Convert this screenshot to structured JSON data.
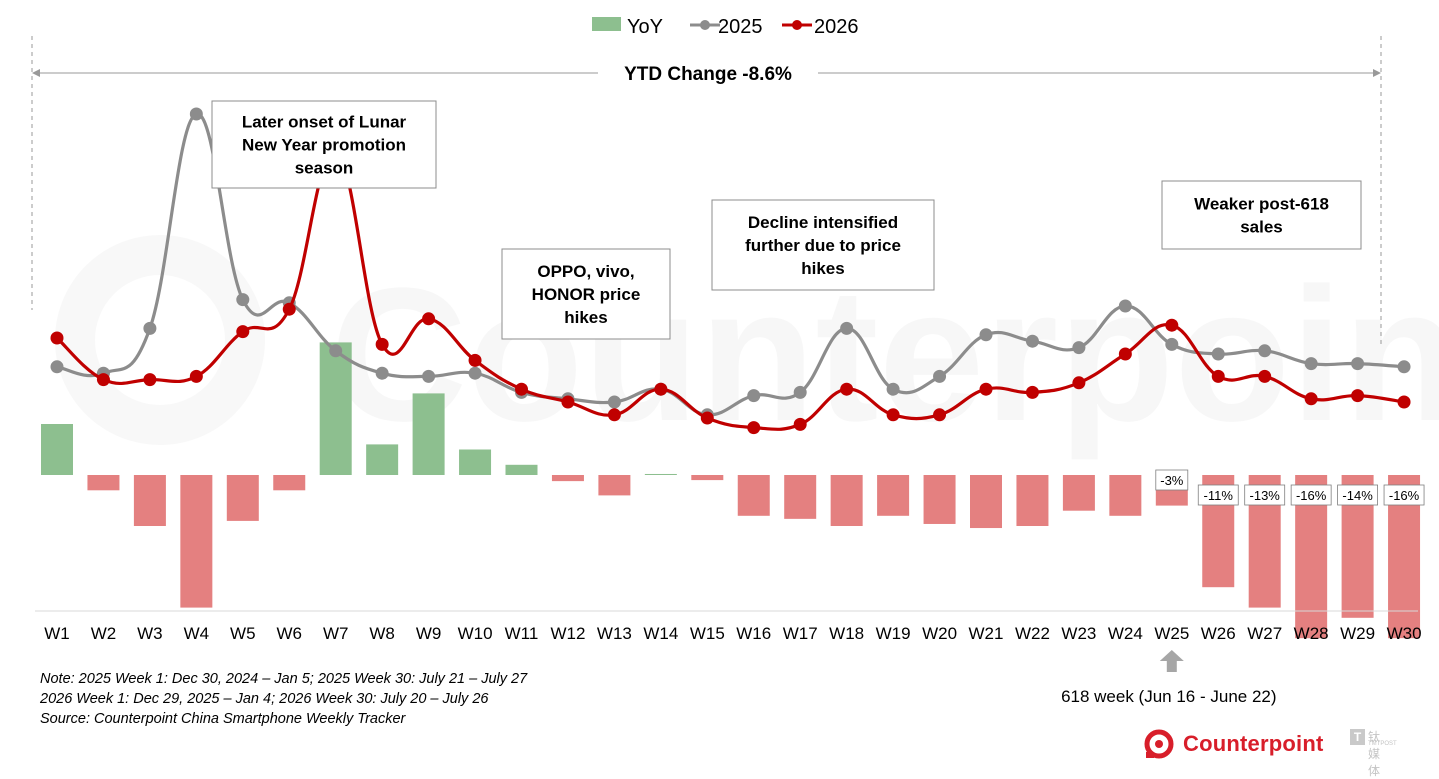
{
  "chart_data": {
    "type": "bar+line",
    "categories": [
      "W1",
      "W2",
      "W3",
      "W4",
      "W5",
      "W6",
      "W7",
      "W8",
      "W9",
      "W10",
      "W11",
      "W12",
      "W13",
      "W14",
      "W15",
      "W16",
      "W17",
      "W18",
      "W19",
      "W20",
      "W21",
      "W22",
      "W23",
      "W24",
      "W25",
      "W26",
      "W27",
      "W28",
      "W29",
      "W30"
    ],
    "lines": [
      {
        "name": "2025",
        "color": "#8c8c8c",
        "values": [
          131,
          129,
          143,
          210,
          152,
          151,
          136,
          129,
          128,
          129,
          123,
          121,
          120,
          124,
          116,
          122,
          123,
          143,
          124,
          128,
          141,
          139,
          137,
          150,
          138,
          135,
          136,
          132,
          132,
          131
        ]
      },
      {
        "name": "2026",
        "color": "#c00000",
        "values": [
          140,
          127,
          127,
          128,
          142,
          149,
          198,
          138,
          146,
          133,
          124,
          120,
          116,
          124,
          115,
          112,
          113,
          124,
          116,
          116,
          124,
          123,
          126,
          135,
          144,
          128,
          128,
          121,
          122,
          120
        ]
      }
    ],
    "bars": {
      "name": "YoY",
      "unit": "%",
      "positive_color": "#8dbf8f",
      "negative_color": "#e48080",
      "values": [
        5,
        -1.5,
        -5,
        -13,
        -4.5,
        -1.5,
        13,
        3,
        8,
        2.5,
        1,
        -0.6,
        -2,
        0.1,
        -0.5,
        -4,
        -4.3,
        -5,
        -4,
        -4.8,
        -5.2,
        -5,
        -3.5,
        -4,
        -3,
        -11,
        -13,
        -16,
        -14,
        -16
      ],
      "labels": [
        "",
        "",
        "",
        "",
        "",
        "",
        "",
        "",
        "",
        "",
        "",
        "",
        "",
        "",
        "",
        "",
        "",
        "",
        "",
        "",
        "",
        "",
        "",
        "",
        "-3%",
        "-11%",
        "-13%",
        "-16%",
        "-14%",
        "-16%"
      ]
    },
    "legend": {
      "position": "top",
      "items": [
        "YoY",
        "2025",
        "2026"
      ]
    },
    "ytd_label": "YTD Change -8.6%",
    "annotations": [
      "Later onset of Lunar New Year promotion season",
      "OPPO, vivo, HONOR price hikes",
      "Decline intensified further due to price hikes",
      "Weaker post-618 sales"
    ],
    "annotation_lines": [
      [
        "Later onset of Lunar",
        "New Year promotion",
        "season"
      ],
      [
        "OPPO, vivo,",
        "HONOR price",
        "hikes"
      ],
      [
        "Decline intensified",
        "further due to price",
        "hikes"
      ],
      [
        "Weaker post-618",
        "sales"
      ]
    ],
    "event_label": "618 week (Jun 16 - June 22)",
    "watermark": "Counterpoint"
  },
  "notes": [
    "Note: 2025 Week 1: Dec 30, 2024 – Jan 5; 2025 Week 30: July 21 – July 27",
    "2026 Week 1: Dec 29, 2025 – Jan 4; 2026 Week 30: July 20 – July 26",
    "Source: Counterpoint China Smartphone Weekly Tracker"
  ],
  "brand": {
    "name": "Counterpoint",
    "color": "#d81e2a"
  },
  "tmtpost": {
    "text": "钛媒体",
    "sub": "TMTPOST"
  }
}
